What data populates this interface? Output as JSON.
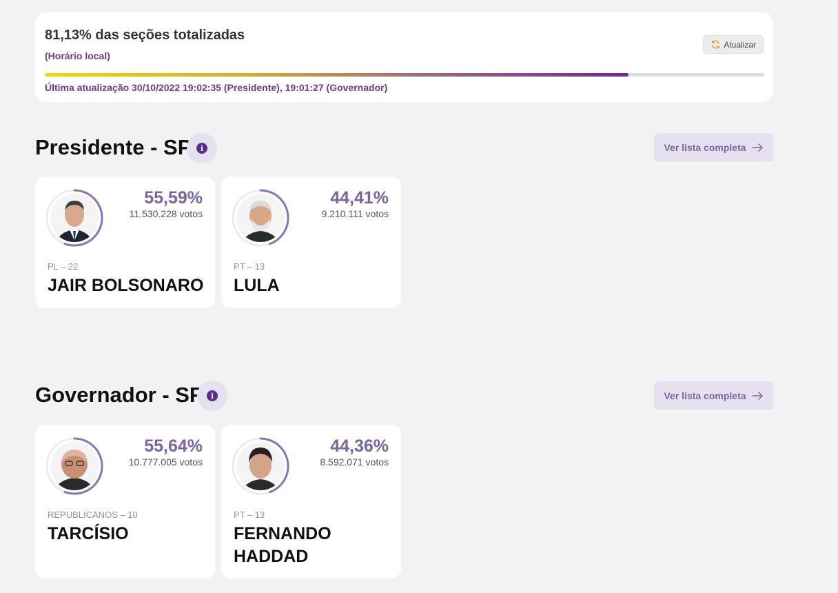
{
  "status": {
    "sections_text": "81,13% das seções totalizadas",
    "local_time_label": "(Horário local)",
    "refresh_label": "Atualizar",
    "progress_percent": 81.13,
    "last_update_text": "Última atualização 30/10/2022 19:02:35 (Presidente), 19:01:27 (Governador)"
  },
  "accent_color": "#7a64a3",
  "sections": [
    {
      "title": "Presidente - SP",
      "info_icon": "info-icon",
      "list_button_label": "Ver lista completa",
      "candidates": [
        {
          "percent": "55,59%",
          "votes": "11.530.228 votos",
          "party": "PL – 22",
          "name": "JAIR BOLSONARO",
          "share": 0.5559,
          "photo": "candidate-photo-suit"
        },
        {
          "percent": "44,41%",
          "votes": "9.210.111 votos",
          "party": "PT – 13",
          "name": "LULA",
          "share": 0.4441,
          "photo": "candidate-photo-white-hair"
        }
      ]
    },
    {
      "title": "Governador - SP",
      "info_icon": "info-icon",
      "list_button_label": "Ver lista completa",
      "candidates": [
        {
          "percent": "55,64%",
          "votes": "10.777.005 votos",
          "party": "REPUBLICANOS – 10",
          "name": "TARCÍSIO",
          "share": 0.5564,
          "photo": "candidate-photo-bald"
        },
        {
          "percent": "44,36%",
          "votes": "8.592.071 votos",
          "party": "PT – 13",
          "name": "FERNANDO HADDAD",
          "share": 0.4436,
          "photo": "candidate-photo-dark-hair"
        }
      ]
    }
  ]
}
